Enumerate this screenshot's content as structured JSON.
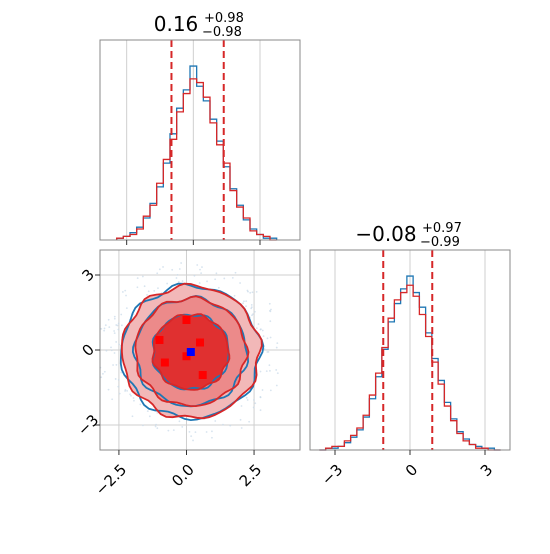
{
  "colors": {
    "blue": "#1f77b4",
    "red": "#d62728",
    "red_fill_light": "#f2b8b8",
    "red_fill_mid": "#ec8a8a",
    "red_fill_dark": "#e03030",
    "grid": "#cfcfcf",
    "marker_red": "#ff0000",
    "marker_blue": "#0000ff"
  },
  "chart_data": [
    {
      "type": "histogram",
      "panel": "top-left",
      "title_main": "0.16",
      "title_sup": "+0.98",
      "title_sub": "−0.98",
      "xlim": [
        -3.5,
        4.0
      ],
      "quantile_lines": [
        -0.82,
        1.14
      ],
      "series": [
        {
          "name": "",
          "color": "blue",
          "centers": [
            -2.75,
            -2.5,
            -2.25,
            -2.0,
            -1.75,
            -1.5,
            -1.25,
            -1.0,
            -0.75,
            -0.5,
            -0.25,
            0.0,
            0.25,
            0.5,
            0.75,
            1.0,
            1.25,
            1.5,
            1.75,
            2.0,
            2.25,
            2.5,
            2.75,
            3.0
          ],
          "values": [
            1,
            2,
            4,
            7,
            12,
            20,
            29,
            42,
            58,
            72,
            82,
            95,
            84,
            76,
            66,
            54,
            40,
            28,
            19,
            11,
            6,
            3,
            1,
            1
          ]
        },
        {
          "name": "",
          "color": "red",
          "centers": [
            -2.75,
            -2.5,
            -2.25,
            -2.0,
            -1.75,
            -1.5,
            -1.25,
            -1.0,
            -0.75,
            -0.5,
            -0.25,
            0.0,
            0.25,
            0.5,
            0.75,
            1.0,
            1.25,
            1.5,
            1.75,
            2.0,
            2.25,
            2.5,
            2.75,
            3.0
          ],
          "values": [
            1,
            2,
            3,
            6,
            13,
            19,
            31,
            44,
            55,
            70,
            80,
            88,
            86,
            78,
            64,
            52,
            42,
            27,
            18,
            12,
            5,
            3,
            2,
            0
          ]
        }
      ]
    },
    {
      "type": "histogram",
      "panel": "bottom-right",
      "title_main": "−0.08",
      "title_sup": "+0.97",
      "title_sub": "−0.99",
      "xlim": [
        -4.0,
        4.0
      ],
      "xticks": [
        -3,
        0,
        3
      ],
      "xtick_labels": [
        "−3",
        "0",
        "3"
      ],
      "quantile_lines": [
        -1.07,
        0.89
      ],
      "series": [
        {
          "name": "",
          "color": "blue",
          "centers": [
            -3.5,
            -3.25,
            -3.0,
            -2.75,
            -2.5,
            -2.25,
            -2.0,
            -1.75,
            -1.5,
            -1.25,
            -1.0,
            -0.75,
            -0.5,
            -0.25,
            0.0,
            0.25,
            0.5,
            0.75,
            1.0,
            1.25,
            1.5,
            1.75,
            2.0,
            2.25,
            2.5,
            2.75,
            3.0,
            3.25,
            3.5
          ],
          "values": [
            0,
            1,
            1,
            2,
            4,
            7,
            11,
            18,
            28,
            40,
            55,
            70,
            80,
            88,
            95,
            86,
            78,
            64,
            50,
            38,
            26,
            17,
            10,
            6,
            3,
            2,
            1,
            1,
            0
          ]
        },
        {
          "name": "",
          "color": "red",
          "centers": [
            -3.5,
            -3.25,
            -3.0,
            -2.75,
            -2.5,
            -2.25,
            -2.0,
            -1.75,
            -1.5,
            -1.25,
            -1.0,
            -0.75,
            -0.5,
            -0.25,
            0.0,
            0.25,
            0.5,
            0.75,
            1.0,
            1.25,
            1.5,
            1.75,
            2.0,
            2.25,
            2.5,
            2.75,
            3.0,
            3.25,
            3.5
          ],
          "values": [
            0,
            1,
            2,
            2,
            5,
            8,
            12,
            19,
            30,
            42,
            56,
            72,
            82,
            86,
            90,
            84,
            74,
            62,
            48,
            36,
            24,
            16,
            9,
            5,
            3,
            1,
            1,
            0,
            0
          ]
        }
      ]
    },
    {
      "type": "contour",
      "panel": "bottom-left",
      "xlim": [
        -3.2,
        4.2
      ],
      "ylim": [
        -4.0,
        4.0
      ],
      "xticks": [
        -2.5,
        0.0,
        2.5
      ],
      "xtick_labels": [
        "−2.5",
        "0.0",
        "2.5"
      ],
      "yticks": [
        -3,
        0,
        3
      ],
      "ytick_labels": [
        "−3",
        "0",
        "3"
      ],
      "center": [
        0.16,
        -0.08
      ],
      "contour_levels": [
        {
          "level": "outer",
          "rx": 2.55,
          "ry": 2.65
        },
        {
          "level": "mid",
          "rx": 2.05,
          "ry": 2.15
        },
        {
          "level": "inner",
          "rx": 1.4,
          "ry": 1.5
        }
      ],
      "red_markers": [
        [
          0.0,
          1.2
        ],
        [
          -1.0,
          0.4
        ],
        [
          0.5,
          0.3
        ],
        [
          -0.8,
          -0.5
        ],
        [
          0.6,
          -1.0
        ],
        [
          0.0,
          -0.25
        ]
      ],
      "blue_marker": [
        0.16,
        -0.08
      ]
    }
  ]
}
